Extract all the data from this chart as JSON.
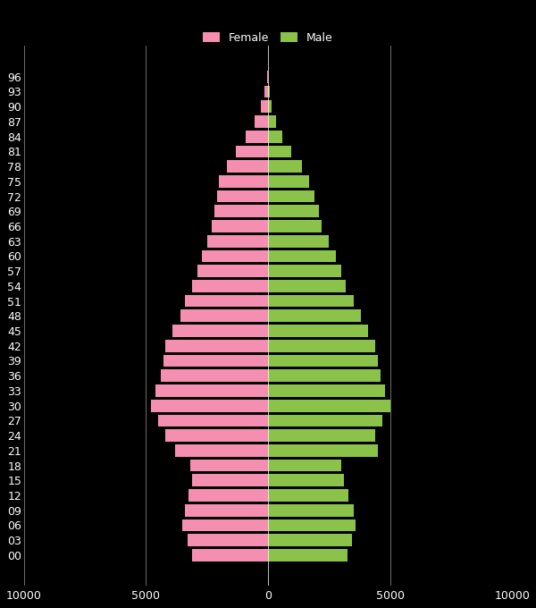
{
  "age_labels": [
    "00",
    "03",
    "06",
    "09",
    "12",
    "15",
    "18",
    "21",
    "24",
    "27",
    "30",
    "33",
    "36",
    "39",
    "42",
    "45",
    "48",
    "51",
    "54",
    "57",
    "60",
    "63",
    "66",
    "69",
    "72",
    "75",
    "78",
    "81",
    "84",
    "87",
    "90",
    "93",
    "96"
  ],
  "female": [
    3100,
    3300,
    3500,
    3400,
    3250,
    3100,
    3200,
    3800,
    4200,
    4500,
    4800,
    4600,
    4400,
    4300,
    4200,
    3900,
    3600,
    3400,
    3100,
    2900,
    2700,
    2500,
    2300,
    2200,
    2100,
    2000,
    1700,
    1300,
    900,
    550,
    300,
    130,
    30
  ],
  "male": [
    3250,
    3450,
    3600,
    3500,
    3300,
    3100,
    3000,
    4500,
    4400,
    4700,
    5000,
    4800,
    4600,
    4500,
    4400,
    4100,
    3800,
    3500,
    3200,
    3000,
    2800,
    2500,
    2200,
    2100,
    1900,
    1700,
    1400,
    950,
    600,
    330,
    150,
    55,
    10
  ],
  "female_color": "#f48fb1",
  "male_color": "#8bc34a",
  "background_color": "#000000",
  "text_color": "#ffffff",
  "grid_color": "#ffffff",
  "xlim": [
    -10000,
    10000
  ],
  "xticks": [
    -10000,
    -5000,
    0,
    5000,
    10000
  ],
  "tick_fontsize": 9,
  "legend_fontsize": 9
}
